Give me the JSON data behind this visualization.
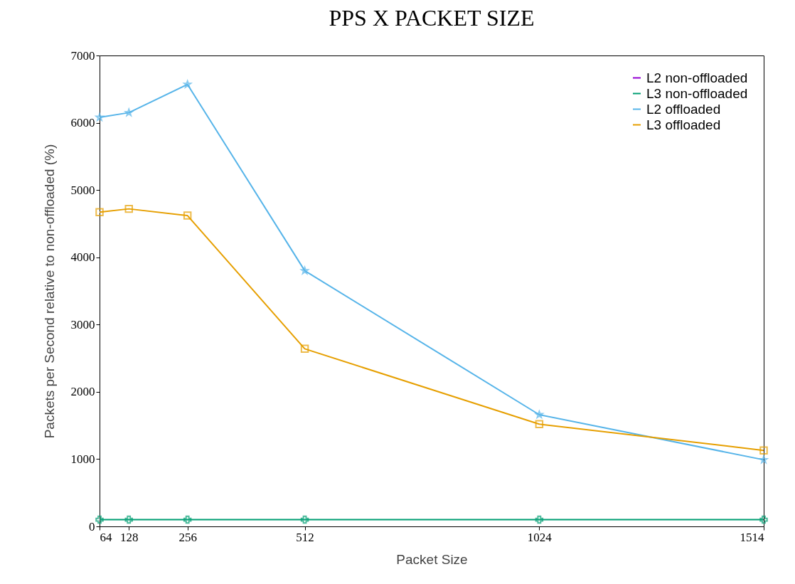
{
  "chart_data": {
    "type": "line",
    "title": "PPS X PACKET SIZE",
    "xlabel": "Packet Size",
    "ylabel": "Packets per Second relative to non-offloaded (%)",
    "x": [
      64,
      128,
      256,
      512,
      1024,
      1514
    ],
    "series": [
      {
        "name": "L2 non-offloaded",
        "color": "#9400d3",
        "marker": "cross",
        "values": [
          null,
          null,
          null,
          null,
          null,
          null
        ]
      },
      {
        "name": "L3 non-offloaded",
        "color": "#009e73",
        "marker": "cross",
        "values": [
          100,
          100,
          100,
          100,
          100,
          100
        ]
      },
      {
        "name": "L2 offloaded",
        "color": "#56b4e9",
        "marker": "star",
        "values": [
          6080,
          6150,
          6570,
          3800,
          1660,
          990
        ]
      },
      {
        "name": "L3 offloaded",
        "color": "#e69f00",
        "marker": "square",
        "values": [
          4670,
          4720,
          4620,
          2640,
          1520,
          1130
        ]
      }
    ],
    "xlim": [
      64,
      1514
    ],
    "xticks": [
      64,
      128,
      256,
      512,
      1024,
      1514
    ],
    "ylim": [
      0,
      7000
    ],
    "yticks": [
      0,
      1000,
      2000,
      3000,
      4000,
      5000,
      6000,
      7000
    ],
    "grid": false,
    "legend": "top right"
  }
}
